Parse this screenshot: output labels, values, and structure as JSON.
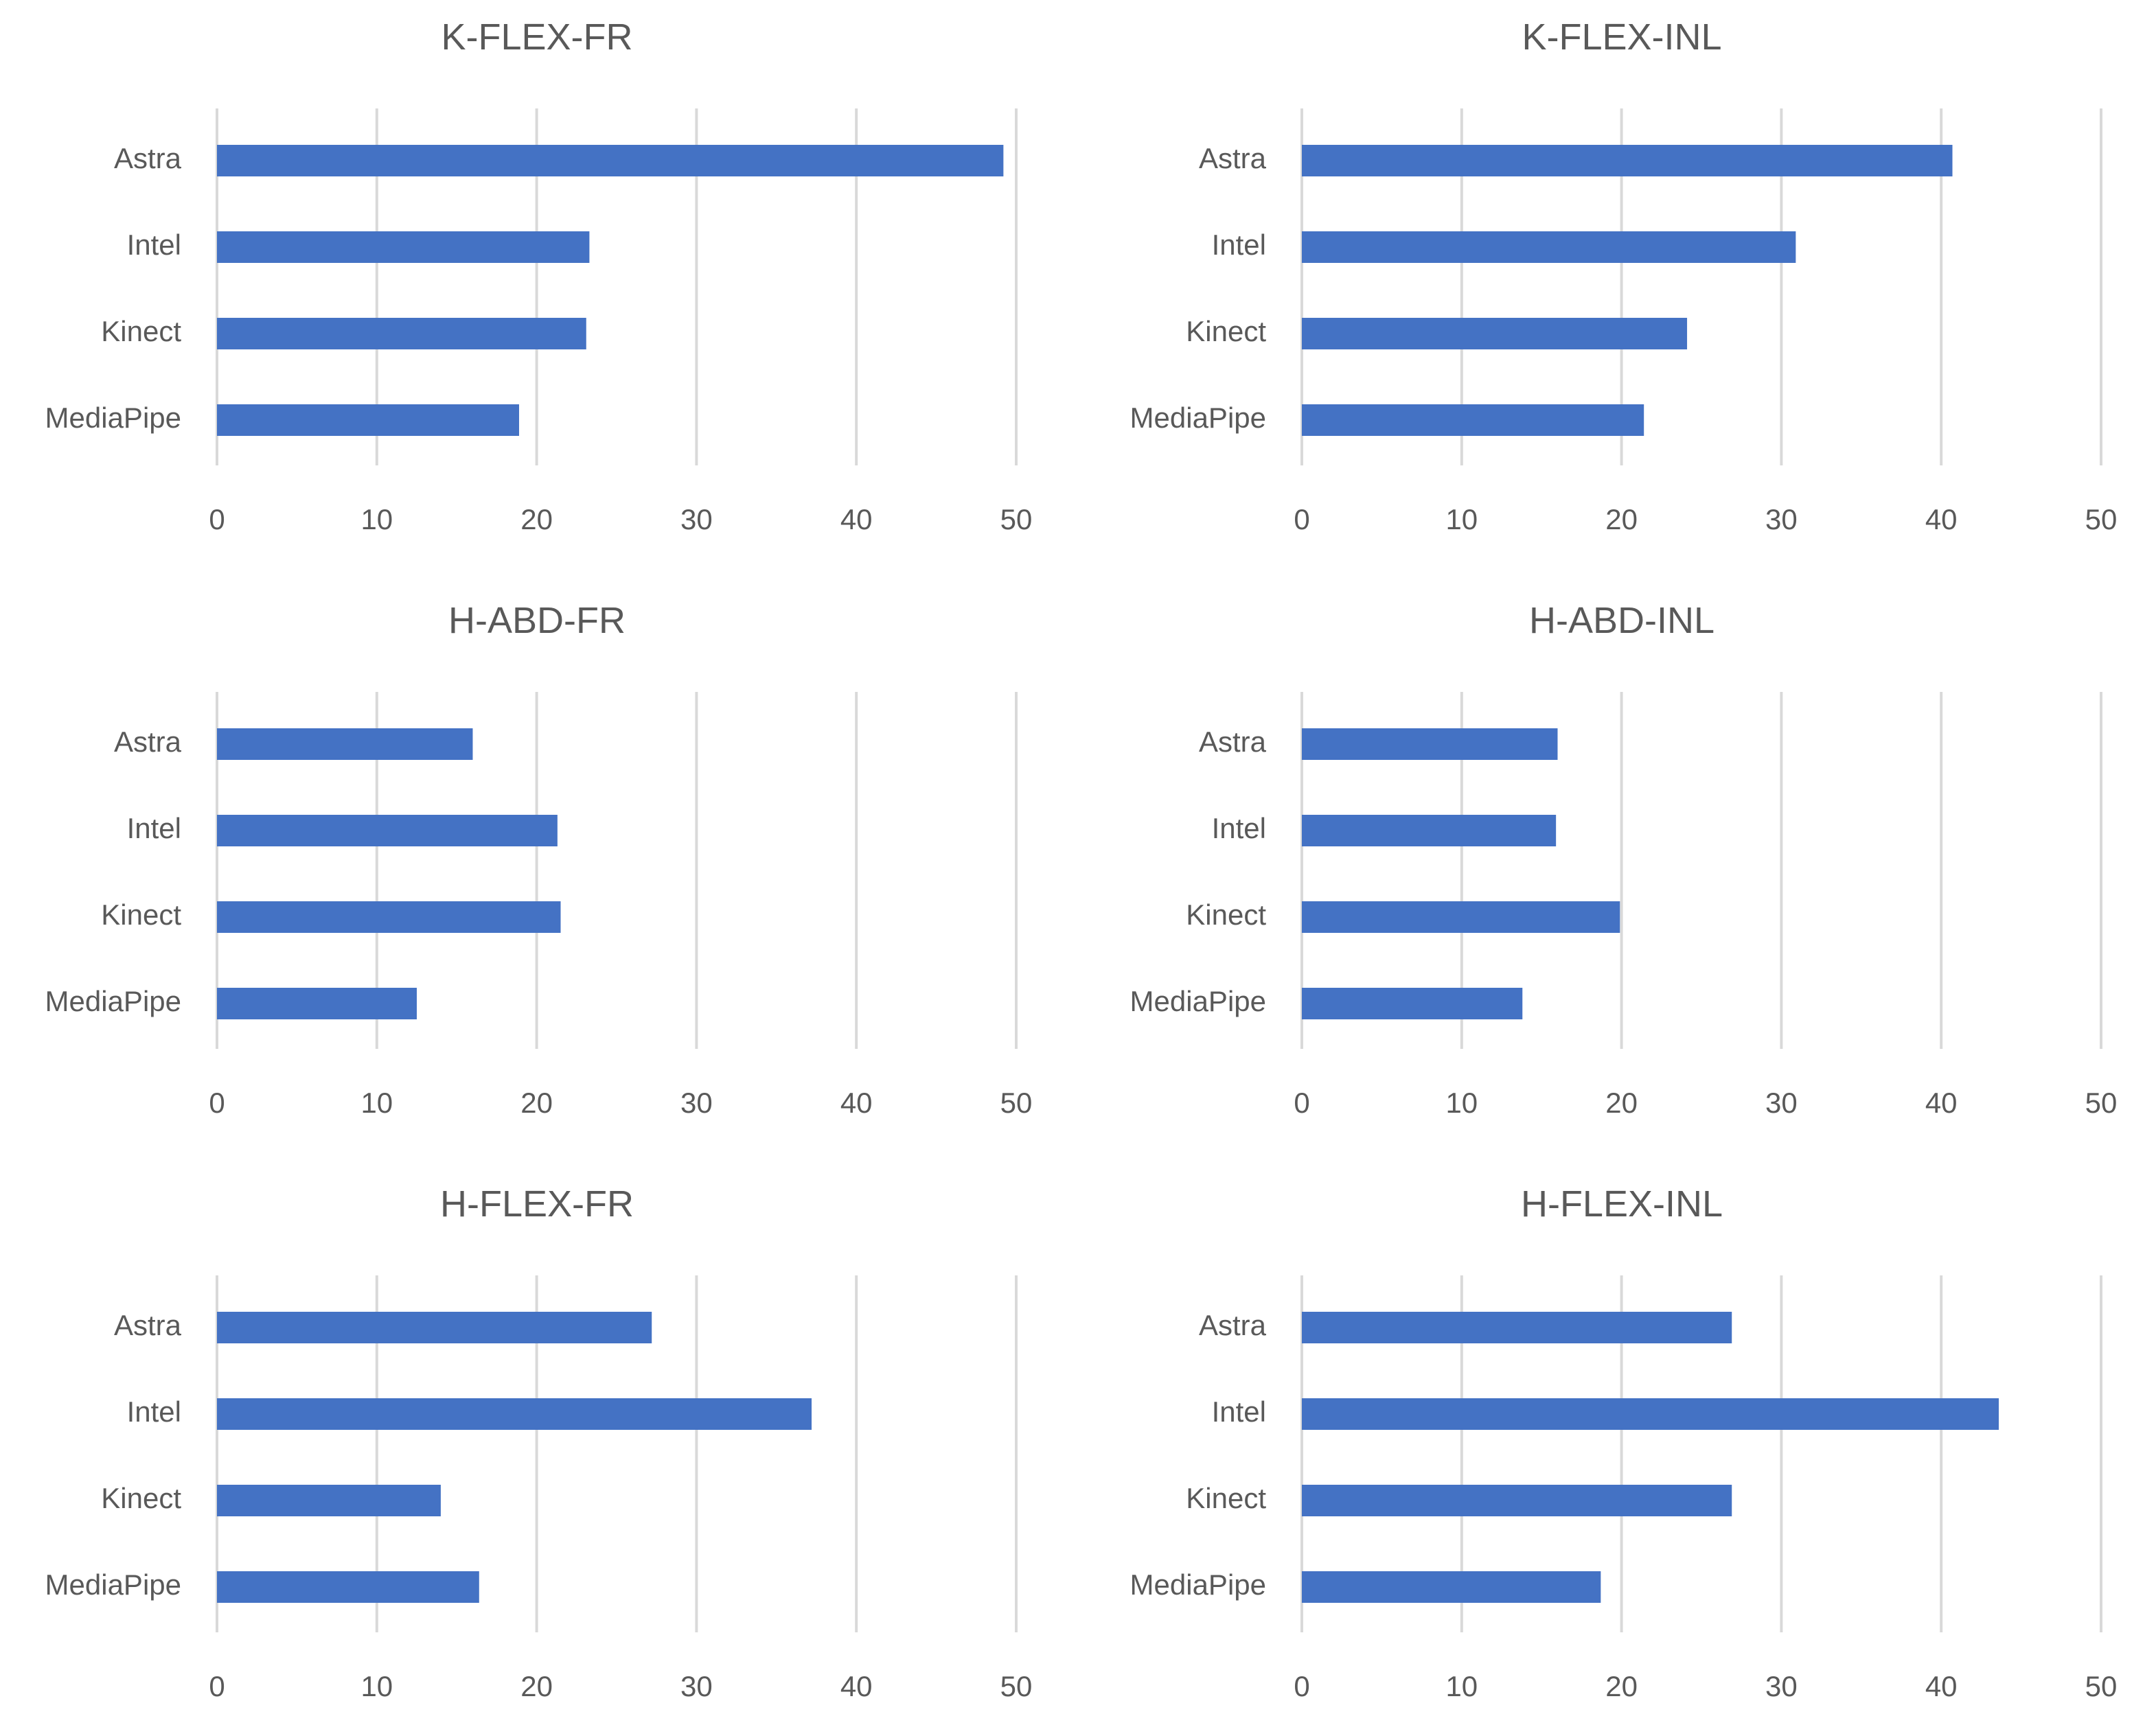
{
  "chart_data": [
    {
      "type": "bar",
      "orientation": "horizontal",
      "title": "K-FLEX-FR",
      "categories": [
        "Astra",
        "Intel",
        "Kinect",
        "MediaPipe"
      ],
      "values": [
        49.2,
        23.3,
        23.1,
        18.9
      ],
      "xlim": [
        0,
        50
      ],
      "xticks": [
        "0",
        "10",
        "20",
        "30",
        "40",
        "50"
      ],
      "grid": true,
      "color": "#4472C4"
    },
    {
      "type": "bar",
      "orientation": "horizontal",
      "title": "K-FLEX-INL",
      "categories": [
        "Astra",
        "Intel",
        "Kinect",
        "MediaPipe"
      ],
      "values": [
        40.7,
        30.9,
        24.1,
        21.4
      ],
      "xlim": [
        0,
        50
      ],
      "xticks": [
        "0",
        "10",
        "20",
        "30",
        "40",
        "50"
      ],
      "grid": true,
      "color": "#4472C4"
    },
    {
      "type": "bar",
      "orientation": "horizontal",
      "title": "H-ABD-FR",
      "categories": [
        "Astra",
        "Intel",
        "Kinect",
        "MediaPipe"
      ],
      "values": [
        16.0,
        21.3,
        21.5,
        12.5
      ],
      "xlim": [
        0,
        50
      ],
      "xticks": [
        "0",
        "10",
        "20",
        "30",
        "40",
        "50"
      ],
      "grid": true,
      "color": "#4472C4"
    },
    {
      "type": "bar",
      "orientation": "horizontal",
      "title": "H-ABD-INL",
      "categories": [
        "Astra",
        "Intel",
        "Kinect",
        "MediaPipe"
      ],
      "values": [
        16.0,
        15.9,
        19.9,
        13.8
      ],
      "xlim": [
        0,
        50
      ],
      "xticks": [
        "0",
        "10",
        "20",
        "30",
        "40",
        "50"
      ],
      "grid": true,
      "color": "#4472C4"
    },
    {
      "type": "bar",
      "orientation": "horizontal",
      "title": "H-FLEX-FR",
      "categories": [
        "Astra",
        "Intel",
        "Kinect",
        "MediaPipe"
      ],
      "values": [
        27.2,
        37.2,
        14.0,
        16.4
      ],
      "xlim": [
        0,
        50
      ],
      "xticks": [
        "0",
        "10",
        "20",
        "30",
        "40",
        "50"
      ],
      "grid": true,
      "color": "#4472C4"
    },
    {
      "type": "bar",
      "orientation": "horizontal",
      "title": "H-FLEX-INL",
      "categories": [
        "Astra",
        "Intel",
        "Kinect",
        "MediaPipe"
      ],
      "values": [
        26.9,
        43.6,
        26.9,
        18.7
      ],
      "xlim": [
        0,
        50
      ],
      "xticks": [
        "0",
        "10",
        "20",
        "30",
        "40",
        "50"
      ],
      "grid": true,
      "color": "#4472C4"
    }
  ]
}
